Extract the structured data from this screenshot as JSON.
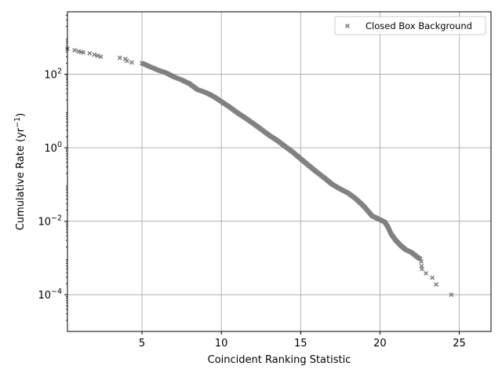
{
  "chart_data": {
    "type": "scatter",
    "xlabel": "Coincident Ranking Statistic",
    "ylabel": "Cumulative Rate (yr",
    "ylabel_exponent": "−1",
    "ylabel_close": ")",
    "x_scale": "linear",
    "y_scale": "log",
    "xlim": [
      0.3,
      27
    ],
    "ylim": [
      1e-05,
      5000
    ],
    "grid": true,
    "legend_position": "top-right",
    "x_ticks": [
      {
        "value": 5,
        "label": "5"
      },
      {
        "value": 10,
        "label": "10"
      },
      {
        "value": 15,
        "label": "15"
      },
      {
        "value": 20,
        "label": "20"
      },
      {
        "value": 25,
        "label": "25"
      }
    ],
    "y_ticks": [
      {
        "value": 100,
        "base": "10",
        "exp": "2"
      },
      {
        "value": 1,
        "base": "10",
        "exp": "0"
      },
      {
        "value": 0.01,
        "base": "10",
        "exp": "−2"
      },
      {
        "value": 0.0001,
        "base": "10",
        "exp": "−4"
      }
    ],
    "series": [
      {
        "name": "Closed Box Background",
        "color": "#808080",
        "marker": "x",
        "points": [
          [
            0.3,
            490
          ],
          [
            0.75,
            450
          ],
          [
            1.0,
            420
          ],
          [
            1.15,
            400
          ],
          [
            1.3,
            390
          ],
          [
            1.7,
            370
          ],
          [
            2.0,
            340
          ],
          [
            2.2,
            320
          ],
          [
            2.4,
            300
          ],
          [
            3.6,
            280
          ],
          [
            3.95,
            260
          ],
          [
            4.05,
            230
          ],
          [
            4.35,
            210
          ],
          [
            5.0,
            200
          ]
        ],
        "curve": [
          [
            5.0,
            200
          ],
          [
            5.5,
            160
          ],
          [
            6.0,
            130
          ],
          [
            6.5,
            110
          ],
          [
            7.0,
            85
          ],
          [
            7.5,
            70
          ],
          [
            8.0,
            55
          ],
          [
            8.5,
            38
          ],
          [
            9.0,
            32
          ],
          [
            9.5,
            25
          ],
          [
            10.0,
            18
          ],
          [
            10.5,
            13
          ],
          [
            11.0,
            9
          ],
          [
            11.5,
            6.5
          ],
          [
            12.0,
            4.6
          ],
          [
            12.5,
            3.2
          ],
          [
            13.0,
            2.2
          ],
          [
            13.5,
            1.6
          ],
          [
            14.0,
            1.1
          ],
          [
            14.5,
            0.76
          ],
          [
            15.0,
            0.5
          ],
          [
            15.5,
            0.33
          ],
          [
            16.0,
            0.22
          ],
          [
            16.5,
            0.15
          ],
          [
            17.0,
            0.1
          ],
          [
            17.5,
            0.075
          ],
          [
            18.0,
            0.058
          ],
          [
            18.5,
            0.04
          ],
          [
            19.0,
            0.025
          ],
          [
            19.5,
            0.014
          ],
          [
            20.0,
            0.011
          ],
          [
            20.3,
            0.0095
          ],
          [
            20.5,
            0.007
          ],
          [
            20.7,
            0.0045
          ],
          [
            21.0,
            0.003
          ],
          [
            21.3,
            0.0022
          ],
          [
            21.6,
            0.0017
          ],
          [
            22.0,
            0.0014
          ],
          [
            22.3,
            0.0011
          ],
          [
            22.6,
            0.0009
          ]
        ],
        "tail": [
          [
            22.6,
            0.0008
          ],
          [
            22.62,
            0.0006
          ],
          [
            22.65,
            0.0005
          ],
          [
            22.9,
            0.00038
          ],
          [
            23.3,
            0.00029
          ],
          [
            23.55,
            0.00019
          ],
          [
            24.5,
            0.0001
          ]
        ]
      }
    ]
  }
}
